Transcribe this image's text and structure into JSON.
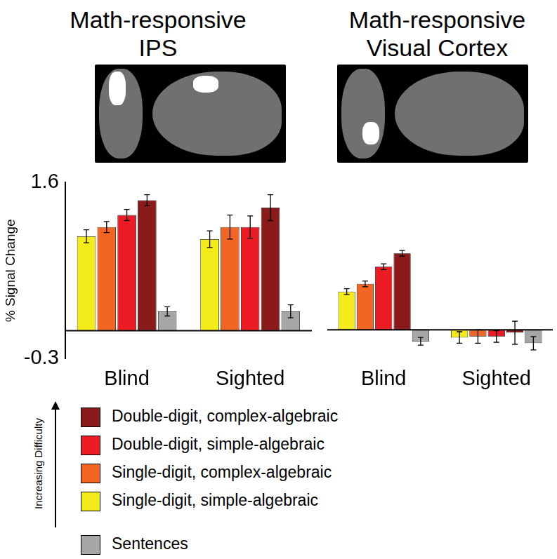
{
  "chart_data": [
    {
      "type": "bar",
      "title": "Math-responsive IPS",
      "y_label": "% Signal Change",
      "categories": [
        "Blind",
        "Sighted"
      ],
      "series": [
        {
          "name": "Single-digit, simple-algebraic",
          "color": "#f4ec1a",
          "values": [
            1.02,
            0.99
          ],
          "errors": [
            0.07,
            0.09
          ]
        },
        {
          "name": "Single-digit, complex-algebraic",
          "color": "#f26522",
          "values": [
            1.12,
            1.12
          ],
          "errors": [
            0.06,
            0.13
          ]
        },
        {
          "name": "Double-digit, simple-algebraic",
          "color": "#ed1c24",
          "values": [
            1.25,
            1.12
          ],
          "errors": [
            0.06,
            0.12
          ]
        },
        {
          "name": "Double-digit, complex-algebraic",
          "color": "#8b1a1a",
          "values": [
            1.41,
            1.33
          ],
          "errors": [
            0.06,
            0.14
          ]
        },
        {
          "name": "Sentences",
          "color": "#a6a6a6",
          "values": [
            0.21,
            0.21
          ],
          "errors": [
            0.05,
            0.07
          ]
        }
      ],
      "ylim": [
        -0.3,
        1.6
      ],
      "yticks": [
        -0.3,
        1.6
      ],
      "grid": false,
      "legend": "bottom",
      "annotation": "Increasing Difficulty"
    },
    {
      "type": "bar",
      "title": "Math-responsive Visual Cortex",
      "categories": [
        "Blind",
        "Sighted"
      ],
      "series": [
        {
          "name": "Single-digit, simple-algebraic",
          "color": "#f4ec1a",
          "values": [
            0.4,
            -0.08
          ],
          "errors": [
            0.03,
            0.06
          ]
        },
        {
          "name": "Single-digit, complex-algebraic",
          "color": "#f26522",
          "values": [
            0.48,
            -0.07
          ],
          "errors": [
            0.03,
            0.07
          ]
        },
        {
          "name": "Double-digit, simple-algebraic",
          "color": "#ed1c24",
          "values": [
            0.66,
            -0.07
          ],
          "errors": [
            0.03,
            0.06
          ]
        },
        {
          "name": "Double-digit, complex-algebraic",
          "color": "#8b1a1a",
          "values": [
            0.8,
            -0.03
          ],
          "errors": [
            0.03,
            0.12
          ]
        },
        {
          "name": "Sentences",
          "color": "#a6a6a6",
          "values": [
            -0.12,
            -0.14
          ],
          "errors": [
            0.04,
            0.07
          ]
        }
      ],
      "ylim": [
        -0.3,
        1.6
      ],
      "yticks": [
        -0.3,
        1.6
      ],
      "grid": false,
      "tick_labels": "x"
    }
  ]
}
